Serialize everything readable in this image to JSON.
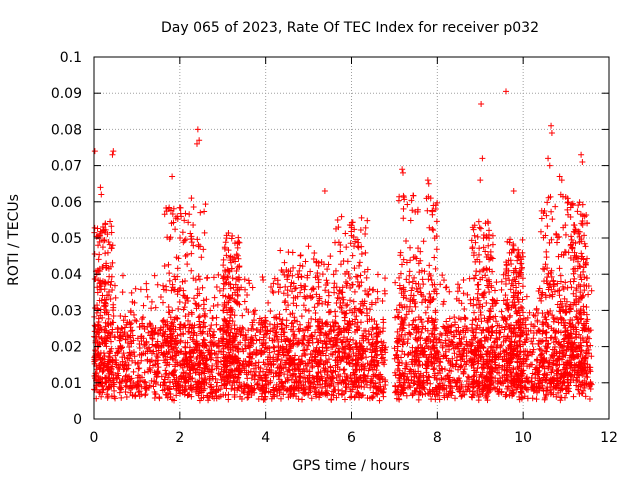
{
  "chart_data": {
    "type": "scatter",
    "title": "Day 065 of 2023, Rate Of TEC Index for receiver p032",
    "xlabel": "GPS time / hours",
    "ylabel": "ROTI / TECUs",
    "xlim": [
      0,
      12
    ],
    "ylim": [
      0,
      0.1
    ],
    "grid": true,
    "marker": "+",
    "color": "#ff0000",
    "x_ticks": [
      "0",
      "2",
      "4",
      "6",
      "8",
      "10",
      "12"
    ],
    "y_ticks": [
      "0",
      "0.01",
      "0.02",
      "0.03",
      "0.04",
      "0.05",
      "0.06",
      "0.07",
      "0.08",
      "0.09",
      "0.1"
    ],
    "data_x_range": [
      0,
      11.6
    ],
    "data_gap": [
      6.8,
      7.0
    ],
    "outliers": [
      {
        "x": 0.02,
        "y": 0.074
      },
      {
        "x": 0.45,
        "y": 0.074
      },
      {
        "x": 0.43,
        "y": 0.073
      },
      {
        "x": 2.42,
        "y": 0.08
      },
      {
        "x": 2.45,
        "y": 0.077
      },
      {
        "x": 2.4,
        "y": 0.076
      },
      {
        "x": 1.82,
        "y": 0.067
      },
      {
        "x": 7.18,
        "y": 0.069
      },
      {
        "x": 7.2,
        "y": 0.068
      },
      {
        "x": 9.02,
        "y": 0.087
      },
      {
        "x": 9.6,
        "y": 0.0905
      },
      {
        "x": 9.05,
        "y": 0.072
      },
      {
        "x": 9.0,
        "y": 0.066
      },
      {
        "x": 10.65,
        "y": 0.081
      },
      {
        "x": 10.67,
        "y": 0.079
      },
      {
        "x": 10.58,
        "y": 0.072
      },
      {
        "x": 10.62,
        "y": 0.07
      },
      {
        "x": 11.35,
        "y": 0.073
      },
      {
        "x": 11.38,
        "y": 0.071
      },
      {
        "x": 10.85,
        "y": 0.067
      },
      {
        "x": 10.9,
        "y": 0.066
      },
      {
        "x": 5.38,
        "y": 0.063
      },
      {
        "x": 0.15,
        "y": 0.064
      },
      {
        "x": 0.17,
        "y": 0.062
      },
      {
        "x": 9.78,
        "y": 0.063
      },
      {
        "x": 2.27,
        "y": 0.061
      },
      {
        "x": 7.78,
        "y": 0.066
      },
      {
        "x": 7.8,
        "y": 0.065
      }
    ],
    "bursts": [
      {
        "x_start": 0.0,
        "x_end": 0.45,
        "peak": 0.055
      },
      {
        "x_start": 1.6,
        "x_end": 2.6,
        "peak": 0.06
      },
      {
        "x_start": 3.0,
        "x_end": 3.4,
        "peak": 0.052
      },
      {
        "x_start": 4.3,
        "x_end": 5.6,
        "peak": 0.048
      },
      {
        "x_start": 5.6,
        "x_end": 6.4,
        "peak": 0.056
      },
      {
        "x_start": 7.1,
        "x_end": 8.0,
        "peak": 0.062
      },
      {
        "x_start": 8.8,
        "x_end": 9.3,
        "peak": 0.055
      },
      {
        "x_start": 9.6,
        "x_end": 10.0,
        "peak": 0.05
      },
      {
        "x_start": 10.4,
        "x_end": 11.1,
        "peak": 0.062
      },
      {
        "x_start": 11.1,
        "x_end": 11.5,
        "peak": 0.06
      }
    ]
  }
}
